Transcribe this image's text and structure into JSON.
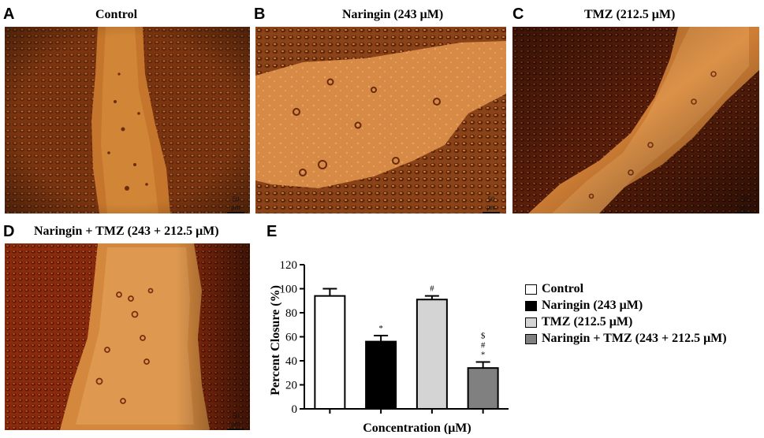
{
  "panels": {
    "A": {
      "letter": "A",
      "title": "Control",
      "scale": "50 μm"
    },
    "B": {
      "letter": "B",
      "title": "Naringin (243 μM)",
      "scale": "50 μm"
    },
    "C": {
      "letter": "C",
      "title": "TMZ (212.5 μM)",
      "scale": "50 μm"
    },
    "D": {
      "letter": "D",
      "title": "Naringin + TMZ (243 + 212.5 μM)",
      "scale": "50 μm"
    },
    "E": {
      "letter": "E"
    }
  },
  "chart_data": {
    "type": "bar",
    "title": "",
    "xlabel": "Concentration (μM)",
    "ylabel": "Percent Closure (%)",
    "ylim": [
      0,
      120
    ],
    "yticks": [
      "0",
      "20",
      "40",
      "60",
      "80",
      "100",
      "120"
    ],
    "categories": [
      "Control",
      "Naringin (243 μM)",
      "TMZ (212.5 μM)",
      "Naringin + TMZ (243 + 212.5 μM)"
    ],
    "values": [
      94,
      56,
      91,
      34
    ],
    "errors": [
      6,
      5,
      3,
      5
    ],
    "significance": [
      "",
      "*",
      "#",
      "$\n#\n*"
    ],
    "colors": [
      "#ffffff",
      "#000000",
      "#d4d4d4",
      "#808080"
    ],
    "legend_position": "right",
    "grid": false
  }
}
